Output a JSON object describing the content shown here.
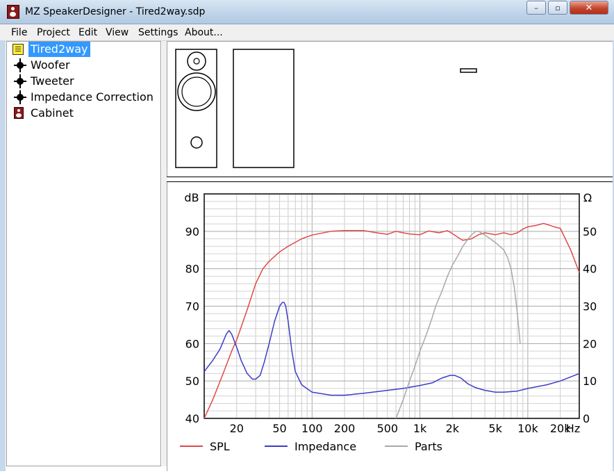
{
  "window": {
    "title": "MZ SpeakerDesigner - Tired2way.sdp"
  },
  "window_controls": {
    "minimize": "–",
    "maximize": "▫",
    "close": "✕"
  },
  "menu": [
    "File",
    "Project",
    "Edit",
    "View",
    "Settings",
    "About..."
  ],
  "tree": [
    {
      "label": "Tired2way",
      "icon": "project-icon",
      "selected": true
    },
    {
      "label": "Woofer",
      "icon": "driver-node-icon"
    },
    {
      "label": "Tweeter",
      "icon": "driver-node-icon"
    },
    {
      "label": "Impedance Correction",
      "icon": "network-node-icon"
    },
    {
      "label": "Cabinet",
      "icon": "cabinet-icon"
    }
  ],
  "chart_data": {
    "type": "line",
    "x_scale": "log",
    "xlim": [
      10,
      30000
    ],
    "left_axis": {
      "label": "dB",
      "ylim": [
        40,
        100
      ],
      "ticks": [
        "40",
        "50",
        "60",
        "70",
        "80",
        "90"
      ]
    },
    "right_axis": {
      "label": "Ω",
      "ylim": [
        0,
        60
      ],
      "ticks": [
        "0",
        "10",
        "20",
        "30",
        "40",
        "50"
      ]
    },
    "x_ticks": [
      {
        "value": 20,
        "label": "20"
      },
      {
        "value": 50,
        "label": "50"
      },
      {
        "value": 100,
        "label": "100"
      },
      {
        "value": 200,
        "label": "200"
      },
      {
        "value": 500,
        "label": "500"
      },
      {
        "value": 1000,
        "label": "1k"
      },
      {
        "value": 2000,
        "label": "2k"
      },
      {
        "value": 5000,
        "label": "5k"
      },
      {
        "value": 10000,
        "label": "10k"
      },
      {
        "value": 20000,
        "label": "20k"
      }
    ],
    "x_unit": "Hz",
    "grid": true,
    "legend_position": "bottom",
    "series": [
      {
        "name": "SPL",
        "axis": "left",
        "color": "#e04848",
        "x": [
          10,
          12,
          15,
          18,
          20,
          25,
          30,
          35,
          40,
          50,
          60,
          80,
          100,
          150,
          200,
          300,
          400,
          500,
          600,
          700,
          800,
          1000,
          1200,
          1500,
          1800,
          2000,
          2300,
          2500,
          3000,
          3500,
          4000,
          5000,
          6000,
          7000,
          8000,
          9000,
          10000,
          12000,
          14000,
          16000,
          18000,
          20000,
          25000,
          30000
        ],
        "y": [
          40,
          45,
          52,
          58,
          61,
          69,
          76,
          80,
          82,
          84.5,
          86,
          88,
          89,
          90,
          90.2,
          90.2,
          89.6,
          89.2,
          90,
          89.6,
          89.3,
          89.1,
          90.1,
          89.6,
          90.2,
          89.4,
          88.2,
          87.6,
          88,
          89.1,
          89.6,
          89.1,
          89.6,
          89.1,
          89.6,
          90.6,
          91.2,
          91.6,
          92.1,
          91.6,
          91.1,
          90.8,
          85,
          79
        ]
      },
      {
        "name": "Impedance",
        "axis": "right",
        "color": "#3c3cc8",
        "x": [
          10,
          12,
          14,
          15,
          16,
          17,
          18,
          20,
          22,
          25,
          28,
          30,
          33,
          36,
          40,
          45,
          50,
          53,
          55,
          57,
          60,
          65,
          70,
          80,
          100,
          150,
          200,
          300,
          500,
          700,
          1000,
          1300,
          1600,
          1900,
          2100,
          2400,
          2800,
          3300,
          4000,
          5000,
          6000,
          8000,
          10000,
          15000,
          20000,
          30000
        ],
        "y": [
          12.5,
          15.5,
          18.5,
          20.5,
          22.5,
          23.5,
          22.5,
          19,
          15.5,
          12,
          10.5,
          10.5,
          11.5,
          15,
          20,
          26,
          30,
          31,
          31,
          30,
          26,
          18,
          12.5,
          9,
          7,
          6.2,
          6.2,
          6.7,
          7.5,
          8,
          8.8,
          9.5,
          10.8,
          11.5,
          11.5,
          10.8,
          9.2,
          8.2,
          7.5,
          7,
          7,
          7.3,
          8,
          9,
          10,
          12
        ]
      },
      {
        "name": "Parts",
        "axis": "right",
        "color": "#a8a8a8",
        "x": [
          600,
          700,
          800,
          900,
          1000,
          1100,
          1200,
          1300,
          1400,
          1600,
          1800,
          2000,
          2200,
          2500,
          2800,
          3000,
          3300,
          3500,
          4000,
          4500,
          5000,
          5500,
          6000,
          6500,
          7000,
          7500,
          8000,
          8500
        ],
        "y": [
          0,
          5,
          10,
          14,
          18,
          21,
          24,
          27,
          30,
          34,
          38,
          41,
          43,
          46,
          48,
          49,
          50,
          50,
          49,
          48,
          47,
          46,
          45,
          43,
          40,
          35,
          28,
          20
        ]
      }
    ]
  }
}
